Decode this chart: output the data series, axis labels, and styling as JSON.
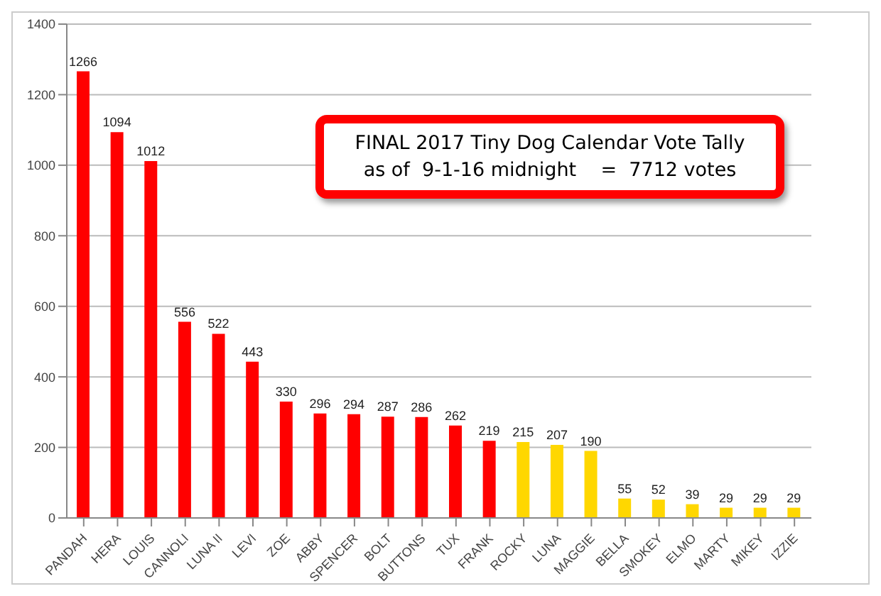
{
  "chart_data": {
    "type": "bar",
    "title": "FINAL 2017 Tiny Dog Calendar Vote Tally",
    "subtitle": "as of  9-1-16 midnight    =  7712 votes",
    "categories": [
      "PANDAH",
      "HERA",
      "LOUIS",
      "CANNOLI",
      "LUNA II",
      "LEVI",
      "ZOE",
      "ABBY",
      "SPENCER",
      "BOLT",
      "BUTTONS",
      "TUX",
      "FRANK",
      "ROCKY",
      "LUNA",
      "MAGGIE",
      "BELLA",
      "SMOKEY",
      "ELMO",
      "MARTY",
      "MIKEY",
      "IZZIE"
    ],
    "values": [
      1266,
      1094,
      1012,
      556,
      522,
      443,
      330,
      296,
      294,
      287,
      286,
      262,
      219,
      215,
      207,
      190,
      55,
      52,
      39,
      29,
      29,
      29
    ],
    "colors": [
      "#ff0000",
      "#ff0000",
      "#ff0000",
      "#ff0000",
      "#ff0000",
      "#ff0000",
      "#ff0000",
      "#ff0000",
      "#ff0000",
      "#ff0000",
      "#ff0000",
      "#ff0000",
      "#ff0000",
      "#ffd700",
      "#ffd700",
      "#ffd700",
      "#ffd700",
      "#ffd700",
      "#ffd700",
      "#ffd700",
      "#ffd700",
      "#ffd700"
    ],
    "ylim": [
      0,
      1400
    ],
    "yticks": [
      0,
      200,
      400,
      600,
      800,
      1000,
      1200,
      1400
    ],
    "grid": "y",
    "data_labels": true
  }
}
